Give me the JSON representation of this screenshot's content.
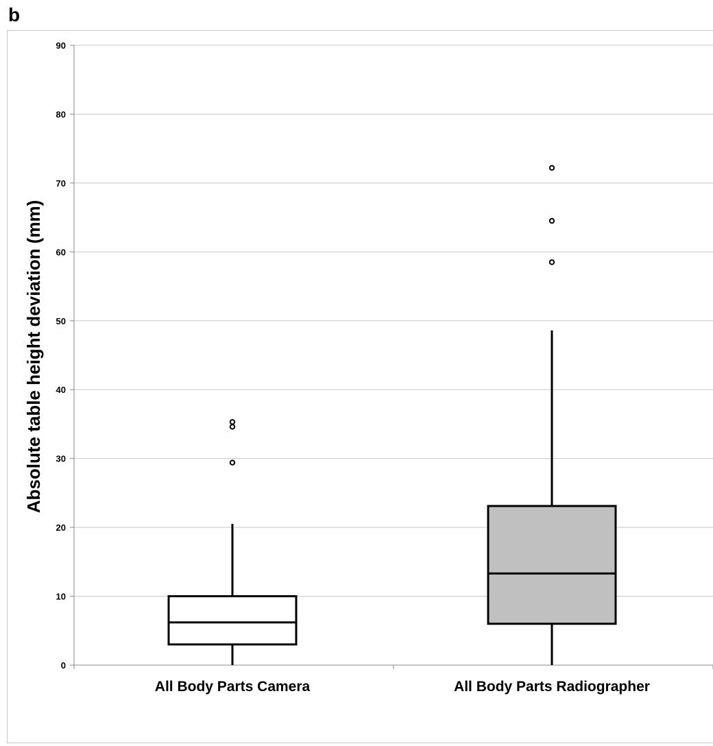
{
  "panel_label": "b",
  "chart_data": {
    "type": "box",
    "ylabel": "Absolute table height deviation (mm)",
    "xlabel": "",
    "ylim": [
      0,
      90
    ],
    "yticks": [
      0,
      10,
      20,
      30,
      40,
      50,
      60,
      70,
      80,
      90
    ],
    "grid": true,
    "categories": [
      "All Body Parts Camera",
      "All Body Parts Radiographer"
    ],
    "boxes": [
      {
        "category": "All Body Parts Camera",
        "min": 0,
        "q1": 3,
        "median": 6.2,
        "q3": 10,
        "max": 20.5,
        "outliers": [
          29.4,
          34.6,
          35.3
        ],
        "fill": "#ffffff"
      },
      {
        "category": "All Body Parts Radiographer",
        "min": 0,
        "q1": 6,
        "median": 13.3,
        "q3": 23.1,
        "max": 48.6,
        "outliers": [
          58.5,
          64.5,
          72.2
        ],
        "fill": "#c0c0c0"
      }
    ],
    "colors": {
      "grid": "#c8c8c8",
      "stroke": "#000000"
    }
  }
}
